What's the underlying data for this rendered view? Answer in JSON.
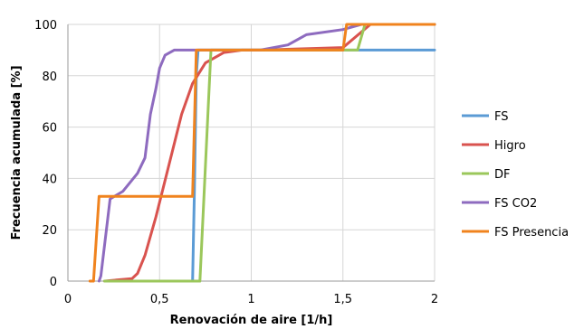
{
  "chart_data": {
    "type": "line",
    "xlabel": "Renovación de aire [1/h]",
    "ylabel": "Frecuencia acumulada [%]",
    "xlim": [
      0,
      2
    ],
    "ylim": [
      0,
      100
    ],
    "x_ticks": [
      "0",
      "0,5",
      "1",
      "1,5",
      "2"
    ],
    "x_tick_values": [
      0,
      0.5,
      1,
      1.5,
      2
    ],
    "y_ticks": [
      "0",
      "20",
      "40",
      "60",
      "80",
      "100"
    ],
    "y_tick_values": [
      0,
      20,
      40,
      60,
      80,
      100
    ],
    "grid": "vertical-and-horizontal",
    "legend_position": "right",
    "series": [
      {
        "name": "FS",
        "color": "#5b9bd5",
        "x": [
          0.68,
          0.69,
          0.7,
          0.71,
          2.0
        ],
        "y": [
          0,
          35,
          80,
          90,
          90
        ]
      },
      {
        "name": "Higro",
        "color": "#d9534f",
        "x": [
          0.2,
          0.35,
          0.38,
          0.42,
          0.48,
          0.55,
          0.62,
          0.68,
          0.75,
          0.85,
          0.95,
          1.05,
          1.5,
          1.65,
          2.0
        ],
        "y": [
          0,
          1,
          3,
          10,
          25,
          45,
          65,
          77,
          85,
          89,
          90,
          90,
          91,
          100,
          100
        ]
      },
      {
        "name": "DF",
        "color": "#9bc75b",
        "x": [
          0.2,
          0.72,
          0.78,
          1.55,
          1.58,
          1.62,
          2.0
        ],
        "y": [
          0,
          0,
          90,
          90,
          90,
          100,
          100
        ]
      },
      {
        "name": "FS CO2",
        "color": "#8e6bbf",
        "x": [
          0.17,
          0.18,
          0.23,
          0.3,
          0.38,
          0.42,
          0.45,
          0.48,
          0.5,
          0.53,
          0.58,
          0.65,
          1.05,
          1.2,
          1.3,
          1.5,
          1.6,
          2.0
        ],
        "y": [
          0,
          2,
          32,
          35,
          42,
          48,
          65,
          75,
          83,
          88,
          90,
          90,
          90,
          92,
          96,
          98,
          100,
          100
        ]
      },
      {
        "name": "FS Presencia",
        "color": "#f0831e",
        "x": [
          0.12,
          0.14,
          0.17,
          0.68,
          0.7,
          1.5,
          1.52,
          2.0
        ],
        "y": [
          0,
          0,
          33,
          33,
          90,
          90,
          100,
          100
        ]
      }
    ]
  }
}
